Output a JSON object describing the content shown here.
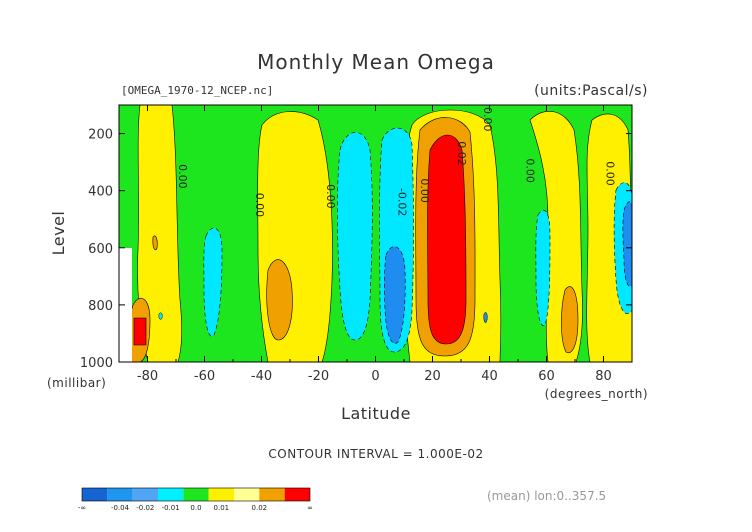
{
  "chart_data": {
    "type": "contour",
    "title": "Monthly Mean Omega",
    "file_label": "[OMEGA_1970-12_NCEP.nc]",
    "units_label": "(units:Pascal/s)",
    "xlabel": "Latitude",
    "x_units": "(degrees_north)",
    "ylabel": "Level",
    "y_units": "(millibar)",
    "xlim": [
      -90,
      90
    ],
    "ylim": [
      1000,
      100
    ],
    "x_ticks": [
      "-80",
      "-60",
      "-40",
      "-20",
      "0",
      "20",
      "40",
      "60",
      "80"
    ],
    "x_tick_values": [
      -80,
      -60,
      -40,
      -20,
      0,
      20,
      40,
      60,
      80
    ],
    "y_ticks": [
      "200",
      "400",
      "600",
      "800",
      "1000"
    ],
    "y_tick_values": [
      200,
      400,
      600,
      800,
      1000
    ],
    "contour_interval": "CONTOUR INTERVAL = 1.000E-02",
    "mean_note": "(mean) lon:0..357.5",
    "contour_labels": [
      {
        "text": "0.00",
        "lat": -69,
        "level": 350
      },
      {
        "text": "0.00",
        "lat": -42,
        "level": 450
      },
      {
        "text": "0.00",
        "lat": -17,
        "level": 420
      },
      {
        "text": "-0.02",
        "lat": 8,
        "level": 440
      },
      {
        "text": "0.00",
        "lat": 16,
        "level": 400
      },
      {
        "text": "0.02",
        "lat": 29,
        "level": 270
      },
      {
        "text": "0.00",
        "lat": 38,
        "level": 150
      },
      {
        "text": "0.00",
        "lat": 53,
        "level": 330
      },
      {
        "text": "0.00",
        "lat": 81,
        "level": 340
      }
    ],
    "colorbar": {
      "colors": [
        "#1464d2",
        "#1e96f0",
        "#50a5f5",
        "#00f0ff",
        "#1ee61e",
        "#fff000",
        "#ffff96",
        "#f0a000",
        "#ff0000"
      ],
      "tick_labels": [
        "-∞",
        "-0.04",
        "-0.02",
        "-0.01",
        "0.0",
        "0.01",
        "0.02",
        "∞"
      ]
    },
    "level_colors": {
      "strong_neg": "#1e8cf0",
      "neg": "#00e8ff",
      "zero_neg": "#1ee61e",
      "zero_pos": "#fff000",
      "pos": "#f0a000",
      "strong_pos": "#ff0000"
    }
  }
}
